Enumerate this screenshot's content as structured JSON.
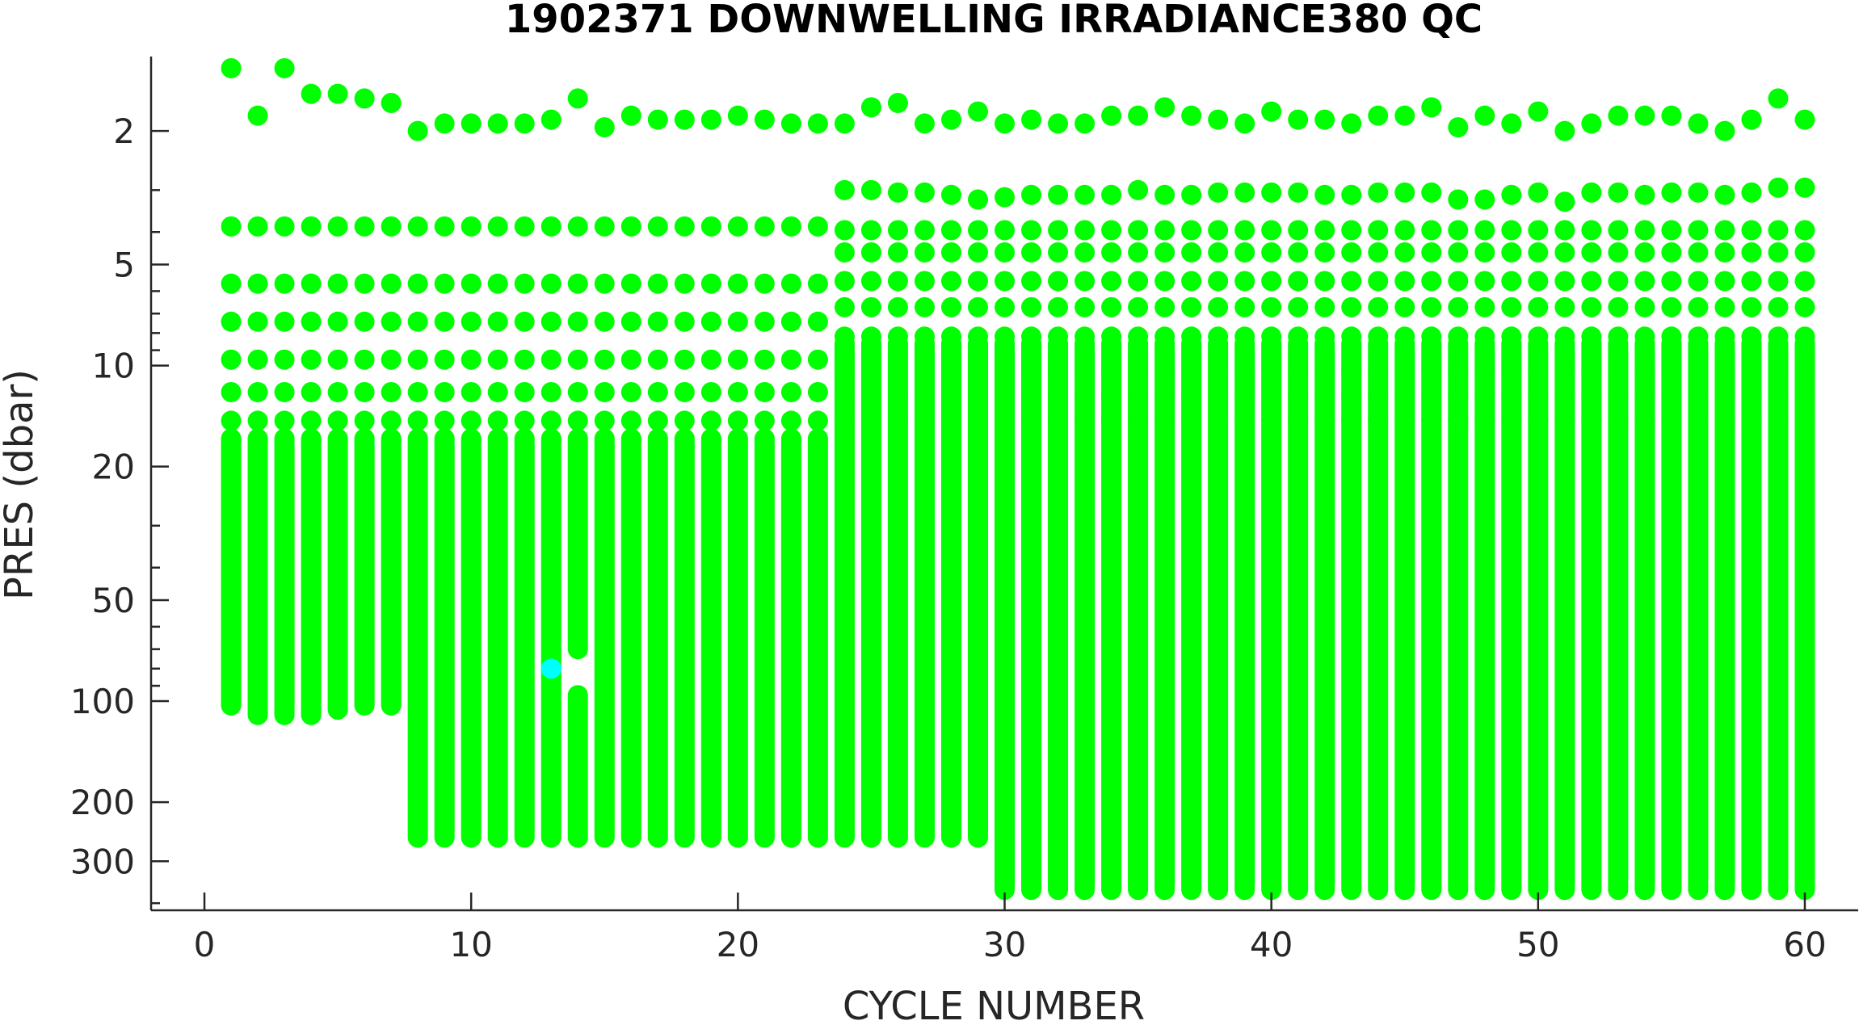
{
  "chart_data": {
    "type": "scatter",
    "title": "1902371  DOWNWELLING IRRADIANCE380 QC",
    "xlabel": "CYCLE NUMBER",
    "ylabel": "PRES (dbar)",
    "xlim": [
      -2,
      62
    ],
    "ylim": [
      1.2,
      420
    ],
    "y_scale": "log",
    "y_reversed": true,
    "x_ticks": [
      0,
      10,
      20,
      30,
      40,
      50,
      60
    ],
    "y_ticks": [
      2,
      5,
      10,
      20,
      50,
      100,
      200,
      300
    ],
    "grid": false,
    "legend": "none",
    "colors": {
      "qc_good": "#00ff00",
      "qc_flagged": "#00ffff",
      "axis": "#262626"
    },
    "series": [
      {
        "qc_flag": 1,
        "color": "#00ff00",
        "profile_max_pres": {
          "cycles": [
            1,
            2,
            3,
            4,
            5,
            6,
            7,
            8,
            9,
            10,
            11,
            12,
            13,
            14,
            15,
            16,
            17,
            18,
            19,
            20,
            21,
            22,
            23,
            24,
            25,
            26,
            27,
            28,
            29,
            30,
            31,
            32,
            33,
            34,
            35,
            36,
            37,
            38,
            39,
            40,
            41,
            42,
            43,
            44,
            45,
            46,
            47,
            48,
            49,
            50,
            51,
            52,
            53,
            54,
            55,
            56,
            57,
            58,
            59,
            60
          ],
          "max_pres": [
            103,
            110,
            110,
            110,
            106,
            103,
            103,
            255,
            255,
            255,
            255,
            255,
            255,
            255,
            255,
            255,
            255,
            255,
            255,
            255,
            255,
            255,
            255,
            255,
            255,
            255,
            255,
            255,
            255,
            365,
            365,
            365,
            365,
            365,
            365,
            365,
            365,
            365,
            365,
            365,
            365,
            365,
            365,
            365,
            365,
            365,
            365,
            365,
            365,
            365,
            365,
            365,
            365,
            365,
            365,
            365,
            365,
            365,
            365,
            365
          ]
        },
        "near_surface_points": {
          "cycles": [
            1,
            2,
            3,
            4,
            5,
            6,
            7,
            8,
            9,
            10,
            11,
            12,
            13,
            14,
            15,
            16,
            17,
            18,
            19,
            20,
            21,
            22,
            23,
            24,
            25,
            26,
            27,
            28,
            29,
            30,
            31,
            32,
            33,
            34,
            35,
            36,
            37,
            38,
            39,
            40,
            41,
            42,
            43,
            44,
            45,
            46,
            47,
            48,
            49,
            50,
            51,
            52,
            53,
            54,
            55,
            56,
            57,
            58,
            59,
            60
          ],
          "pres_1": [
            1.3,
            1.8,
            1.3,
            1.55,
            1.55,
            1.6,
            1.65,
            2.0,
            1.9,
            1.9,
            1.9,
            1.9,
            1.85,
            1.6,
            1.95,
            1.8,
            1.85,
            1.85,
            1.85,
            1.8,
            1.85,
            1.9,
            1.9,
            1.9,
            1.7,
            1.65,
            1.9,
            1.85,
            1.75,
            1.9,
            1.85,
            1.9,
            1.9,
            1.8,
            1.8,
            1.7,
            1.8,
            1.85,
            1.9,
            1.75,
            1.85,
            1.85,
            1.9,
            1.8,
            1.8,
            1.7,
            1.95,
            1.8,
            1.9,
            1.75,
            2.0,
            1.9,
            1.8,
            1.8,
            1.8,
            1.9,
            2.0,
            1.85,
            1.6,
            1.85
          ],
          "pres_2": [
            null,
            null,
            null,
            null,
            null,
            null,
            null,
            null,
            null,
            null,
            null,
            null,
            null,
            null,
            null,
            null,
            null,
            null,
            null,
            null,
            null,
            null,
            null,
            3.0,
            3.0,
            3.05,
            3.05,
            3.1,
            3.2,
            3.15,
            3.1,
            3.1,
            3.1,
            3.1,
            3.0,
            3.1,
            3.1,
            3.05,
            3.05,
            3.05,
            3.05,
            3.1,
            3.1,
            3.05,
            3.05,
            3.05,
            3.2,
            3.2,
            3.1,
            3.05,
            3.25,
            3.05,
            3.05,
            3.1,
            3.05,
            3.05,
            3.1,
            3.05,
            2.95,
            2.95
          ]
        }
      },
      {
        "qc_flag": 2,
        "color": "#00ffff",
        "points": [
          {
            "x": 13,
            "y": 80
          }
        ]
      }
    ],
    "gaps": [
      {
        "cycle": 14,
        "from_pres": 70,
        "to_pres": 96
      }
    ]
  }
}
